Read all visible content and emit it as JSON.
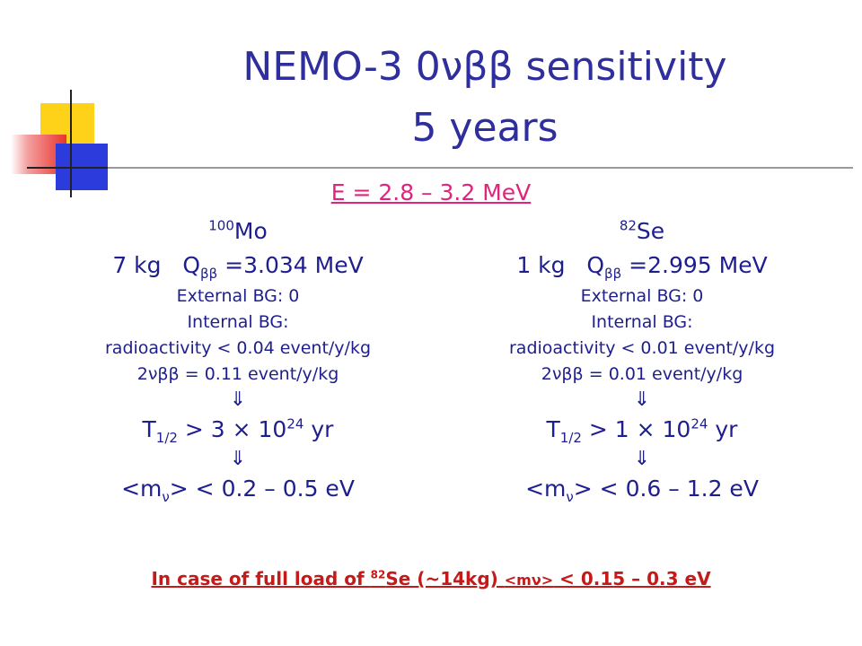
{
  "title": {
    "line1": "NEMO-3 0νββ sensitivity",
    "line2": "5 years"
  },
  "energy_window": "E = 2.8 – 3.2 MeV",
  "left": {
    "isotope_mass_number": "100",
    "isotope_symbol": "Mo",
    "mass": "7 kg",
    "q_label": "Q",
    "q_subscript": "ββ",
    "q_value": "=3.034 MeV",
    "external_bg": "External BG: 0",
    "internal_bg": "Internal BG:",
    "radioactivity": "radioactivity < 0.04 event/y/kg",
    "two_nu_label": "2νββ",
    "two_nu_value": "= 0.11 event/y/kg",
    "arrow": "⇓",
    "half_life_symbol": "T",
    "half_life_sub": "1/2",
    "half_life_prefix": " > 3 × 10",
    "half_life_exp": "24",
    "half_life_unit": " yr",
    "mass_label_open": "<m",
    "mass_label_nu": "ν",
    "mass_label_close": ">",
    "mass_range": " < 0.2 – 0.5 eV"
  },
  "right": {
    "isotope_mass_number": "82",
    "isotope_symbol": "Se",
    "mass": "1 kg",
    "q_label": "Q",
    "q_subscript": "ββ",
    "q_value": "=2.995 MeV",
    "external_bg": "External BG: 0",
    "internal_bg": "Internal BG:",
    "radioactivity": "radioactivity < 0.01 event/y/kg",
    "two_nu_label": "2νββ",
    "two_nu_value": "= 0.01 event/y/kg",
    "arrow": "⇓",
    "half_life_symbol": "T",
    "half_life_sub": "1/2",
    "half_life_prefix": " > 1 × 10",
    "half_life_exp": "24",
    "half_life_unit": " yr",
    "mass_label_open": "<m",
    "mass_label_nu": "ν",
    "mass_label_close": ">",
    "mass_range": " < 0.6 – 1.2 eV"
  },
  "bottom_note": {
    "prefix": "In case of full load of ",
    "sup": "82",
    "middle": "Se (~14kg) ",
    "mnu": "<mν>",
    "suffix": " < 0.15 – 0.3 eV"
  },
  "colors": {
    "title": "#2e2e9c",
    "body_text": "#1e1e8e",
    "energy": "#e0247a",
    "note": "#c41a1a",
    "deco_yellow": "#ffd21a",
    "deco_red": "#e8342c",
    "deco_blue": "#2c3cdc"
  }
}
